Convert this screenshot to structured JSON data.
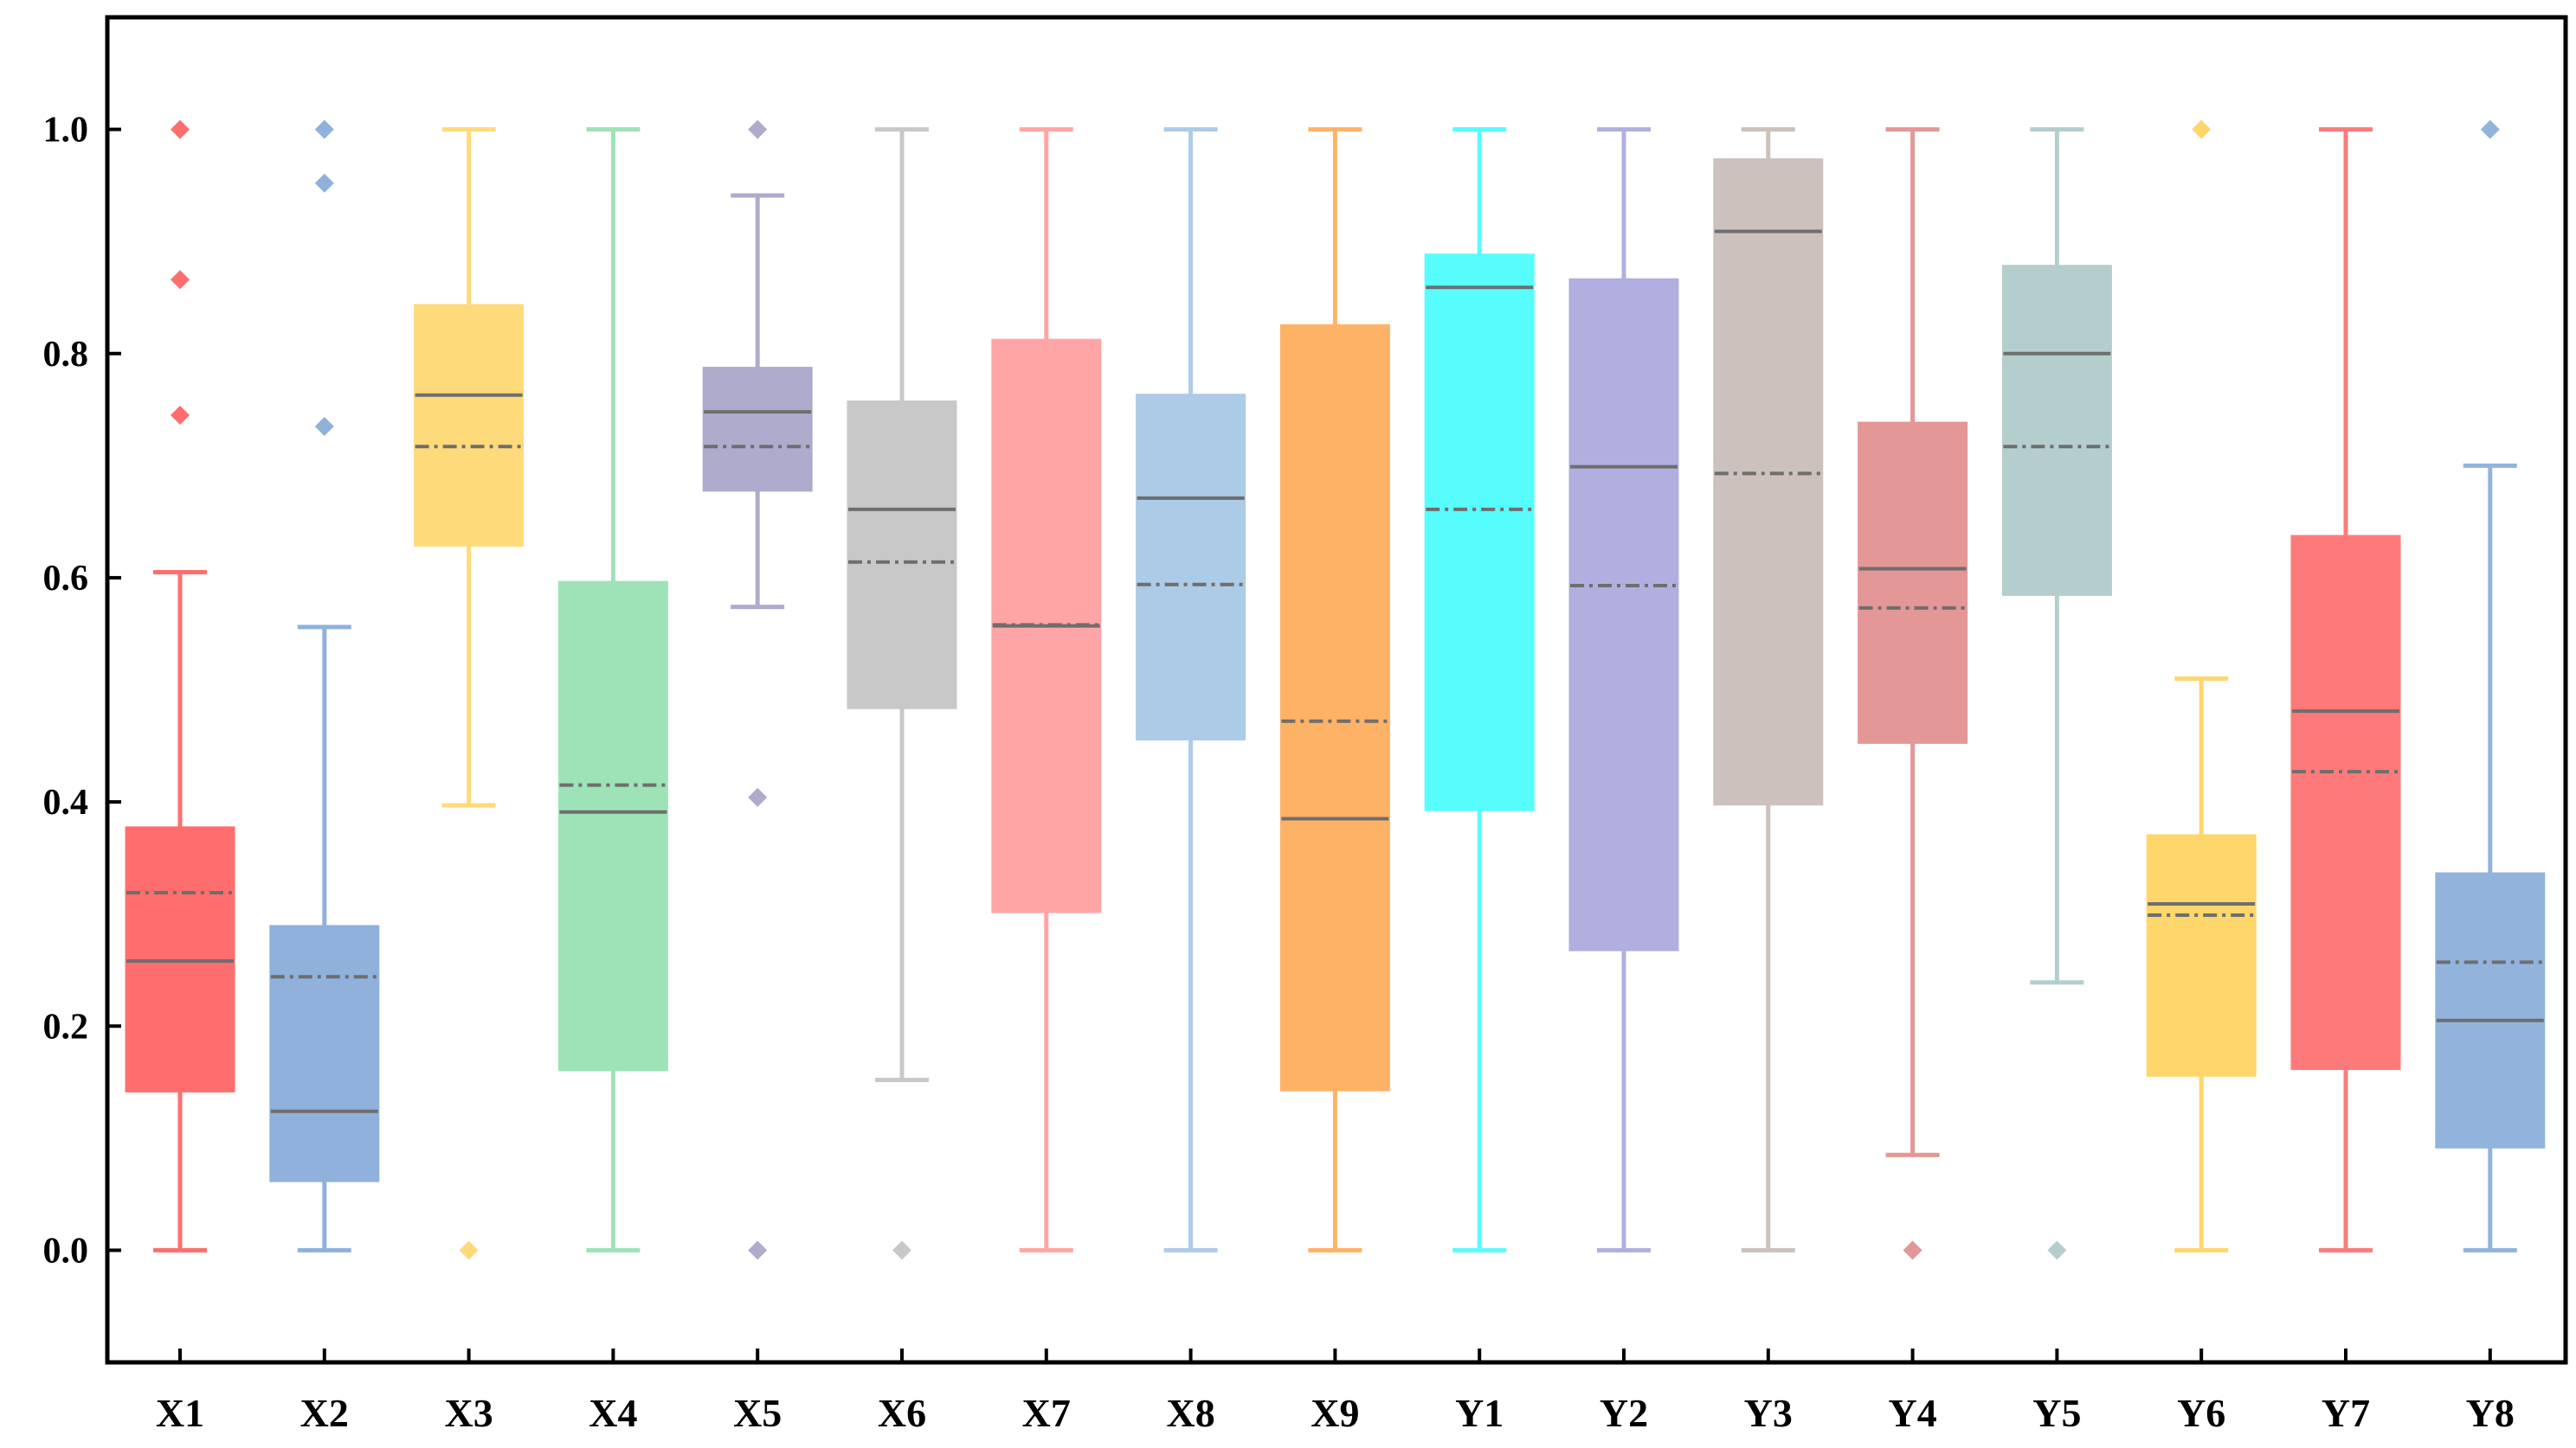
{
  "chart_data": {
    "type": "box",
    "title": "",
    "xlabel": "",
    "ylabel": "",
    "ylim": [
      -0.1,
      1.1
    ],
    "yticks": [
      "0.0",
      "0.2",
      "0.4",
      "0.6",
      "0.8",
      "1.0"
    ],
    "legend": "none",
    "grid": false,
    "categories": [
      "X1",
      "X2",
      "X3",
      "X4",
      "X5",
      "X6",
      "X7",
      "X8",
      "X9",
      "Y1",
      "Y2",
      "Y3",
      "Y4",
      "Y5",
      "Y6",
      "Y7",
      "Y8"
    ],
    "series": [
      {
        "name": "X1",
        "color": "#fe6e6e",
        "whisker_low": 0.0,
        "q1": 0.142,
        "median": 0.258,
        "mean": 0.319,
        "q3": 0.377,
        "whisker_high": 0.605,
        "outliers": [
          0.745,
          0.866,
          1.0
        ]
      },
      {
        "name": "X2",
        "color": "#8fb1db",
        "whisker_low": 0.0,
        "q1": 0.062,
        "median": 0.124,
        "mean": 0.244,
        "q3": 0.289,
        "whisker_high": 0.556,
        "outliers": [
          0.735,
          0.952,
          1.0
        ]
      },
      {
        "name": "X3",
        "color": "#ffda7a",
        "whisker_low": 0.397,
        "q1": 0.629,
        "median": 0.763,
        "mean": 0.717,
        "q3": 0.843,
        "whisker_high": 1.0,
        "outliers": [
          0.0
        ]
      },
      {
        "name": "X4",
        "color": "#9ee3b8",
        "whisker_low": 0.0,
        "q1": 0.161,
        "median": 0.391,
        "mean": 0.415,
        "q3": 0.596,
        "whisker_high": 1.0,
        "outliers": []
      },
      {
        "name": "X5",
        "color": "#afabcd",
        "whisker_low": 0.574,
        "q1": 0.678,
        "median": 0.748,
        "mean": 0.717,
        "q3": 0.787,
        "whisker_high": 0.941,
        "outliers": [
          0.0,
          0.404,
          1.0
        ]
      },
      {
        "name": "X6",
        "color": "#c8c8c8",
        "whisker_low": 0.152,
        "q1": 0.484,
        "median": 0.661,
        "mean": 0.614,
        "q3": 0.757,
        "whisker_high": 1.0,
        "outliers": [
          0.0
        ]
      },
      {
        "name": "X7",
        "color": "#ffa5a5",
        "whisker_low": 0.0,
        "q1": 0.302,
        "median": 0.557,
        "mean": 0.558,
        "q3": 0.812,
        "whisker_high": 1.0,
        "outliers": []
      },
      {
        "name": "X8",
        "color": "#accbe7",
        "whisker_low": 0.0,
        "q1": 0.456,
        "median": 0.671,
        "mean": 0.594,
        "q3": 0.763,
        "whisker_high": 1.0,
        "outliers": []
      },
      {
        "name": "X9",
        "color": "#feb266",
        "whisker_low": 0.0,
        "q1": 0.143,
        "median": 0.385,
        "mean": 0.472,
        "q3": 0.825,
        "whisker_high": 1.0,
        "outliers": []
      },
      {
        "name": "Y1",
        "color": "#57fdfc",
        "whisker_low": 0.0,
        "q1": 0.393,
        "median": 0.859,
        "mean": 0.661,
        "q3": 0.888,
        "whisker_high": 1.0,
        "outliers": []
      },
      {
        "name": "Y2",
        "color": "#b1afdf",
        "whisker_low": 0.0,
        "q1": 0.268,
        "median": 0.699,
        "mean": 0.593,
        "q3": 0.866,
        "whisker_high": 1.0,
        "outliers": []
      },
      {
        "name": "Y3",
        "color": "#ccc1bc",
        "whisker_low": 0.0,
        "q1": 0.398,
        "median": 0.909,
        "mean": 0.693,
        "q3": 0.973,
        "whisker_high": 1.0,
        "outliers": []
      },
      {
        "name": "Y4",
        "color": "#e39796",
        "whisker_low": 0.085,
        "q1": 0.453,
        "median": 0.608,
        "mean": 0.573,
        "q3": 0.738,
        "whisker_high": 1.0,
        "outliers": [
          0.0
        ]
      },
      {
        "name": "Y5",
        "color": "#b4cecd",
        "whisker_low": 0.239,
        "q1": 0.585,
        "median": 0.8,
        "mean": 0.717,
        "q3": 0.878,
        "whisker_high": 1.0,
        "outliers": [
          0.0
        ]
      },
      {
        "name": "Y6",
        "color": "#fed66b",
        "whisker_low": 0.0,
        "q1": 0.156,
        "median": 0.309,
        "mean": 0.299,
        "q3": 0.37,
        "whisker_high": 0.51,
        "outliers": [
          1.0
        ]
      },
      {
        "name": "Y7",
        "color": "#fe7a7a",
        "whisker_low": 0.0,
        "q1": 0.162,
        "median": 0.481,
        "mean": 0.427,
        "q3": 0.637,
        "whisker_high": 1.0,
        "outliers": []
      },
      {
        "name": "Y8",
        "color": "#92b4dc",
        "whisker_low": 0.0,
        "q1": 0.092,
        "median": 0.205,
        "mean": 0.257,
        "q3": 0.336,
        "whisker_high": 0.7,
        "outliers": [
          1.0
        ]
      }
    ]
  }
}
